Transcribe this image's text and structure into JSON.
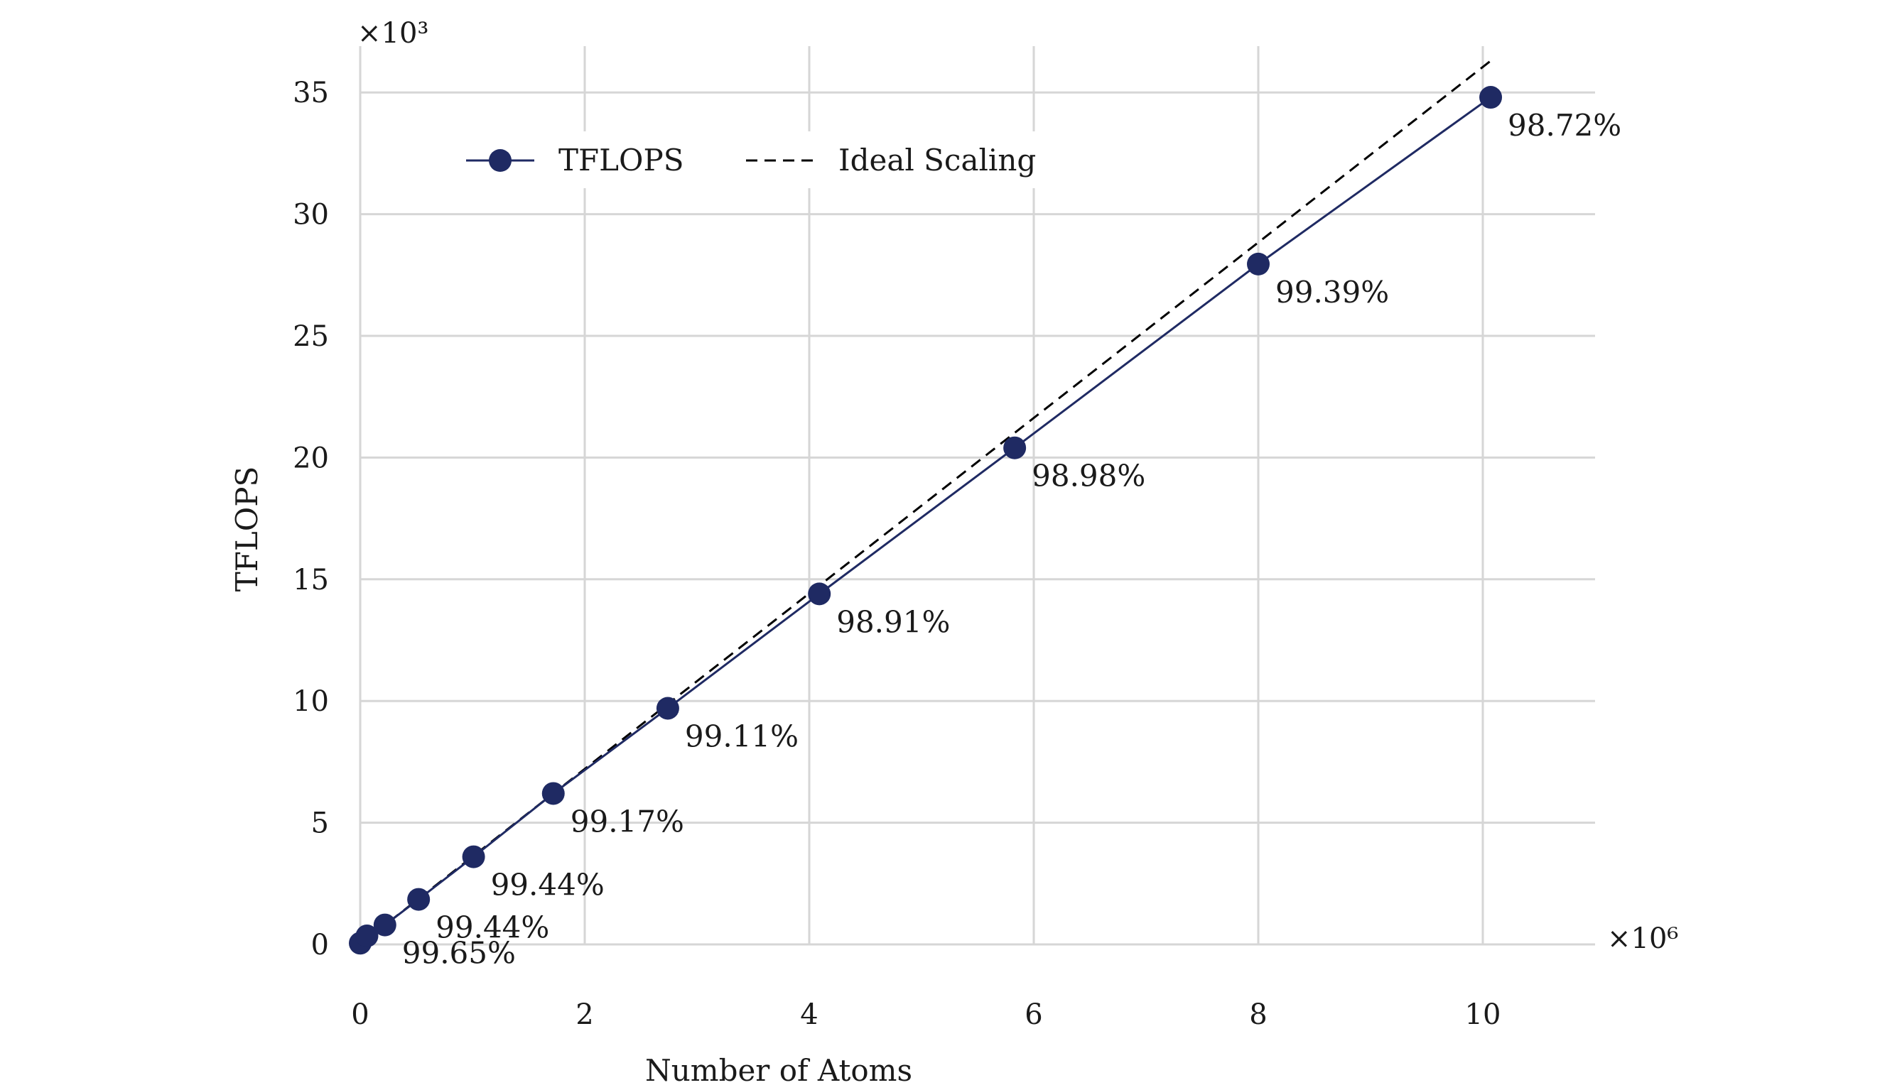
{
  "chart_data": {
    "type": "line",
    "title": "",
    "xlabel": "Number of Atoms",
    "ylabel": "TFLOPS",
    "x_multiplier": "×10⁶",
    "y_multiplier": "×10³",
    "xlim": [
      0,
      11
    ],
    "ylim": [
      0,
      37
    ],
    "x_ticks": [
      0,
      2,
      4,
      6,
      8,
      10
    ],
    "y_ticks": [
      0,
      5,
      10,
      15,
      20,
      25,
      30,
      35
    ],
    "x_tick_labels": [
      "0",
      "2",
      "4",
      "6",
      "8",
      "10"
    ],
    "y_tick_labels": [
      "0",
      "5",
      "10",
      "15",
      "20",
      "25",
      "30",
      "35"
    ],
    "grid": true,
    "legend_position": "top-left",
    "series": [
      {
        "name": "TFLOPS",
        "style": "solid-line-with-markers",
        "color": "#1f2a63",
        "x": [
          0.0,
          0.06,
          0.22,
          0.52,
          1.01,
          1.72,
          2.74,
          4.09,
          5.83,
          8.0,
          10.07
        ],
        "y": [
          0.05,
          0.35,
          0.8,
          1.85,
          3.6,
          6.2,
          9.7,
          14.4,
          20.4,
          27.95,
          34.8
        ],
        "data_labels": [
          "",
          "",
          "99.65%",
          "99.44%",
          "99.44%",
          "99.17%",
          "99.11%",
          "98.91%",
          "98.98%",
          "99.39%",
          "98.72%"
        ]
      },
      {
        "name": "Ideal Scaling",
        "style": "dashed-line",
        "color": "#000000",
        "x": [
          0.0,
          10.07
        ],
        "y": [
          0.0,
          36.3
        ]
      }
    ]
  }
}
